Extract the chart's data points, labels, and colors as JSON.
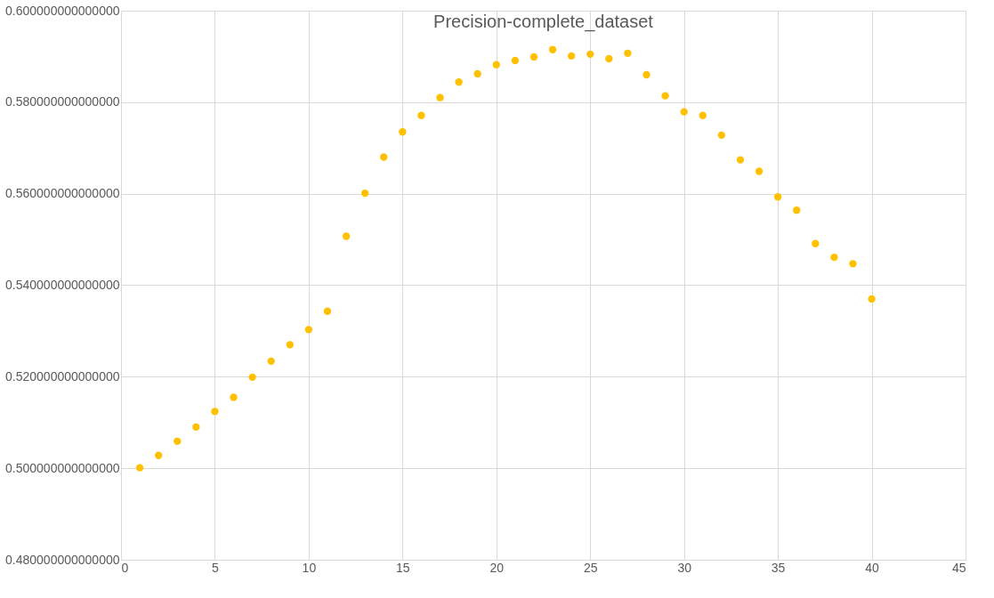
{
  "chart_data": {
    "type": "scatter",
    "title": "Precision-complete_dataset",
    "x": [
      1,
      2,
      3,
      4,
      5,
      6,
      7,
      8,
      9,
      10,
      11,
      12,
      13,
      14,
      15,
      16,
      17,
      18,
      19,
      20,
      21,
      22,
      23,
      24,
      25,
      26,
      27,
      28,
      29,
      30,
      31,
      32,
      33,
      34,
      35,
      36,
      37,
      38,
      39,
      40
    ],
    "series": [
      {
        "color": "#ffc000",
        "values": [
          0.5001,
          0.5028,
          0.5059,
          0.509,
          0.5124,
          0.5155,
          0.5199,
          0.5234,
          0.527,
          0.5303,
          0.5343,
          0.5507,
          0.5601,
          0.568,
          0.5735,
          0.5771,
          0.581,
          0.5844,
          0.5862,
          0.5882,
          0.5891,
          0.5899,
          0.5915,
          0.5901,
          0.5905,
          0.5895,
          0.5907,
          0.586,
          0.5814,
          0.5779,
          0.5771,
          0.5728,
          0.5674,
          0.5649,
          0.5593,
          0.5564,
          0.5491,
          0.5461,
          0.5447,
          0.537
        ]
      }
    ],
    "xlim": [
      0,
      45
    ],
    "xticks": [
      0,
      5,
      10,
      15,
      20,
      25,
      30,
      35,
      40,
      45
    ],
    "ylim": [
      0.48,
      0.6
    ],
    "yticks": [
      {
        "value": 0.48,
        "label": "0.480000000000000"
      },
      {
        "value": 0.5,
        "label": "0.500000000000000"
      },
      {
        "value": 0.52,
        "label": "0.520000000000000"
      },
      {
        "value": 0.54,
        "label": "0.540000000000000"
      },
      {
        "value": 0.56,
        "label": "0.560000000000000"
      },
      {
        "value": 0.58,
        "label": "0.580000000000000"
      },
      {
        "value": 0.6,
        "label": "0.600000000000000"
      }
    ],
    "grid": true,
    "marker": "circle"
  }
}
